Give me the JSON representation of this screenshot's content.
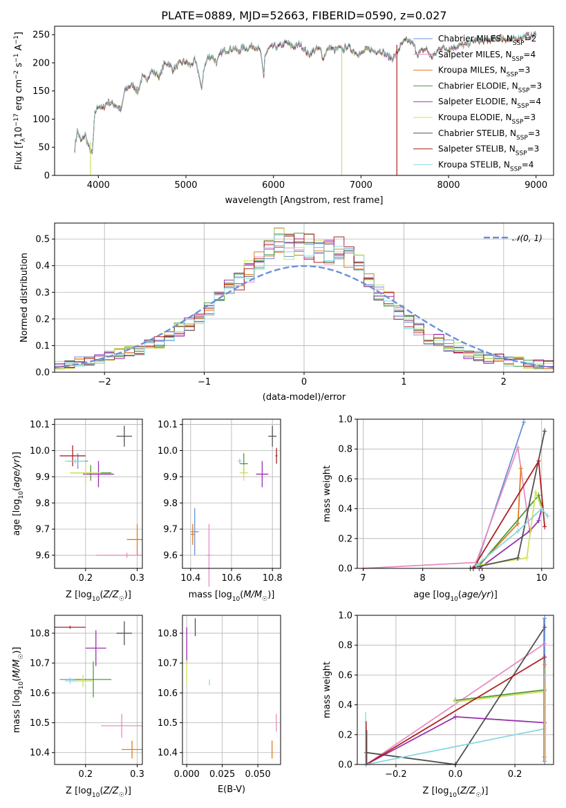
{
  "colors": {
    "Chabrier MILES": "#6a8fd8",
    "Salpeter MILES": "#e88cc0",
    "Kroupa MILES": "#e07a20",
    "Chabrier ELODIE": "#4d9a3a",
    "Salpeter ELODIE": "#9a2eb0",
    "Kroupa ELODIE": "#cfe05a",
    "Chabrier STELIB": "#505050",
    "Salpeter STELIB": "#b01f1f",
    "Kroupa STELIB": "#86d8e0",
    "gaussian": "#6a8fd8"
  },
  "chart_data": [
    {
      "id": "spectrum",
      "type": "line",
      "title": "PLATE=0889, MJD=52663, FIBERID=0590, z=0.027",
      "xlabel": "wavelength [Angstrom, rest frame]",
      "ylabel": "Flux [f_λ 10^-17 erg cm^-2 s^-1 A^-1]",
      "xlim": [
        3500,
        9200
      ],
      "ylim": [
        0,
        265
      ],
      "xticks": [
        "4000",
        "5000",
        "6000",
        "7000",
        "8000",
        "9000"
      ],
      "yticks": [
        "0",
        "50",
        "100",
        "150",
        "200",
        "250"
      ],
      "legend_position": "right",
      "legend": [
        "Chabrier MILES, N_SSP=2",
        "Salpeter MILES, N_SSP=4",
        "Kroupa MILES, N_SSP=3",
        "Chabrier ELODIE, N_SSP=3",
        "Salpeter ELODIE, N_SSP=4",
        "Kroupa ELODIE, N_SSP=3",
        "Chabrier STELIB, N_SSP=3",
        "Salpeter STELIB, N_SSP=3",
        "Kroupa STELIB, N_SSP=4"
      ],
      "x": [
        3730,
        3760,
        3800,
        3850,
        3900,
        3930,
        3960,
        4000,
        4050,
        4100,
        4150,
        4200,
        4260,
        4300,
        4350,
        4400,
        4450,
        4500,
        4550,
        4600,
        4650,
        4700,
        4750,
        4800,
        4850,
        4900,
        4950,
        5000,
        5050,
        5100,
        5150,
        5180,
        5200,
        5250,
        5300,
        5350,
        5400,
        5450,
        5500,
        5550,
        5600,
        5650,
        5700,
        5750,
        5800,
        5850,
        5890,
        5900,
        5950,
        6000,
        6050,
        6100,
        6150,
        6200,
        6250,
        6300,
        6350,
        6400,
        6450,
        6500,
        6550,
        6565,
        6600,
        6650,
        6700,
        6750,
        6800,
        6850,
        6900,
        6950,
        7000,
        7050,
        7100,
        7150,
        7200,
        7250,
        7300,
        7350,
        7400,
        7450,
        7500,
        7550,
        7600,
        7650,
        7700,
        7750,
        7800,
        7850,
        7900,
        7950,
        8000,
        8100,
        8200,
        8300,
        8400,
        8500,
        8600,
        8700,
        8800,
        8900,
        9000
      ],
      "y": [
        48,
        80,
        60,
        72,
        45,
        38,
        110,
        125,
        118,
        130,
        128,
        125,
        115,
        150,
        158,
        160,
        148,
        175,
        170,
        185,
        182,
        175,
        198,
        200,
        188,
        195,
        200,
        202,
        195,
        205,
        180,
        150,
        185,
        210,
        212,
        200,
        218,
        222,
        224,
        226,
        220,
        228,
        225,
        230,
        228,
        222,
        175,
        212,
        225,
        230,
        228,
        232,
        236,
        230,
        228,
        234,
        225,
        215,
        220,
        225,
        222,
        205,
        220,
        228,
        222,
        226,
        224,
        230,
        222,
        218,
        215,
        222,
        225,
        220,
        222,
        220,
        212,
        208,
        215,
        230,
        238,
        240,
        232,
        215,
        222,
        225,
        210,
        215,
        228,
        226,
        225,
        230,
        232,
        240,
        238,
        242,
        245,
        240,
        244,
        248,
        250
      ]
    },
    {
      "id": "residuals",
      "type": "histogram",
      "xlabel": "(data-model)/error",
      "ylabel": "Normed distribution",
      "xlim": [
        -2.5,
        2.5
      ],
      "ylim": [
        0,
        0.56
      ],
      "xticks": [
        "−2",
        "−1",
        "0",
        "1",
        "2"
      ],
      "yticks": [
        "0.0",
        "0.1",
        "0.2",
        "0.3",
        "0.4",
        "0.5"
      ],
      "gaussian_label": "𝒩(0, 1)",
      "bin_edges": [
        -2.5,
        -2.4,
        -2.3,
        -2.2,
        -2.1,
        -2.0,
        -1.9,
        -1.8,
        -1.7,
        -1.6,
        -1.5,
        -1.4,
        -1.3,
        -1.2,
        -1.1,
        -1.0,
        -0.9,
        -0.8,
        -0.7,
        -0.6,
        -0.5,
        -0.4,
        -0.3,
        -0.2,
        -0.1,
        0.0,
        0.1,
        0.2,
        0.3,
        0.4,
        0.5,
        0.6,
        0.7,
        0.8,
        0.9,
        1.0,
        1.1,
        1.2,
        1.3,
        1.4,
        1.5,
        1.6,
        1.7,
        1.8,
        1.9,
        2.0,
        2.1,
        2.2,
        2.3,
        2.4,
        2.5
      ],
      "base_values": [
        0.03,
        0.03,
        0.04,
        0.04,
        0.05,
        0.06,
        0.07,
        0.08,
        0.08,
        0.1,
        0.11,
        0.13,
        0.16,
        0.18,
        0.21,
        0.23,
        0.27,
        0.31,
        0.34,
        0.38,
        0.43,
        0.46,
        0.49,
        0.47,
        0.48,
        0.47,
        0.46,
        0.45,
        0.47,
        0.44,
        0.4,
        0.35,
        0.3,
        0.27,
        0.23,
        0.19,
        0.16,
        0.13,
        0.12,
        0.1,
        0.09,
        0.07,
        0.06,
        0.05,
        0.05,
        0.04,
        0.04,
        0.03,
        0.03,
        0.03
      ]
    },
    {
      "id": "age_vs_Z",
      "type": "scatter",
      "xlabel": "Z [log10(Z/Z☉)]",
      "ylabel": "age  [log10(age/yr)]",
      "xlim": [
        0.14,
        0.31
      ],
      "ylim": [
        9.55,
        10.12
      ],
      "xticks": [
        "0.2",
        "0.3"
      ],
      "yticks": [
        "9.6",
        "9.7",
        "9.8",
        "9.9",
        "10.0",
        "10.1"
      ],
      "points": [
        {
          "model": "Chabrier MILES",
          "x": 0.185,
          "y": 9.96,
          "xerr": 0.02,
          "yerr": 0.03
        },
        {
          "model": "Salpeter MILES",
          "x": 0.28,
          "y": 9.6,
          "xerr": 0.06,
          "yerr": 0.01
        },
        {
          "model": "Kroupa MILES",
          "x": 0.3,
          "y": 9.66,
          "xerr": 0.02,
          "yerr": 0.06
        },
        {
          "model": "Chabrier ELODIE",
          "x": 0.21,
          "y": 9.915,
          "xerr": 0.04,
          "yerr": 0.03
        },
        {
          "model": "Salpeter ELODIE",
          "x": 0.225,
          "y": 9.91,
          "xerr": 0.03,
          "yerr": 0.05
        },
        {
          "model": "Kroupa ELODIE",
          "x": 0.2,
          "y": 9.915,
          "xerr": 0.03,
          "yerr": 0.04
        },
        {
          "model": "Chabrier STELIB",
          "x": 0.275,
          "y": 10.055,
          "xerr": 0.015,
          "yerr": 0.04
        },
        {
          "model": "Salpeter STELIB",
          "x": 0.175,
          "y": 9.98,
          "xerr": 0.025,
          "yerr": 0.04
        },
        {
          "model": "Kroupa STELIB",
          "x": 0.18,
          "y": 9.96,
          "xerr": 0.02,
          "yerr": 0.01
        }
      ]
    },
    {
      "id": "age_vs_mass",
      "type": "scatter",
      "xlabel": "mass [log10(M/M☉)]",
      "ylabel": "",
      "xlim": [
        10.36,
        10.84
      ],
      "ylim": [
        9.55,
        10.12
      ],
      "xticks": [
        "10.4",
        "10.6",
        "10.8"
      ],
      "yticks": [
        "9.6",
        "9.7",
        "9.8",
        "9.9",
        "10.0",
        "10.1"
      ],
      "points": [
        {
          "model": "Chabrier MILES",
          "x": 10.42,
          "y": 9.69,
          "xerr": 0.02,
          "yerr": 0.09
        },
        {
          "model": "Salpeter MILES",
          "x": 10.49,
          "y": 9.6,
          "xerr": 0.01,
          "yerr": 0.12
        },
        {
          "model": "Kroupa MILES",
          "x": 10.41,
          "y": 9.68,
          "xerr": 0.01,
          "yerr": 0.04
        },
        {
          "model": "Chabrier ELODIE",
          "x": 10.66,
          "y": 9.95,
          "xerr": 0.02,
          "yerr": 0.04
        },
        {
          "model": "Salpeter ELODIE",
          "x": 10.75,
          "y": 9.91,
          "xerr": 0.03,
          "yerr": 0.05
        },
        {
          "model": "Kroupa ELODIE",
          "x": 10.66,
          "y": 9.915,
          "xerr": 0.02,
          "yerr": 0.03
        },
        {
          "model": "Chabrier STELIB",
          "x": 10.8,
          "y": 10.055,
          "xerr": 0.02,
          "yerr": 0.04
        },
        {
          "model": "Salpeter STELIB",
          "x": 10.82,
          "y": 9.98,
          "xerr": 0.005,
          "yerr": 0.03
        },
        {
          "model": "Kroupa STELIB",
          "x": 10.64,
          "y": 9.96,
          "xerr": 0.01,
          "yerr": 0.01
        }
      ]
    },
    {
      "id": "weight_vs_age",
      "type": "line",
      "xlabel": "age  [log10(age/yr)]",
      "ylabel": "mass weight",
      "xlim": [
        6.9,
        10.2
      ],
      "ylim": [
        0,
        1.0
      ],
      "xticks": [
        "7",
        "8",
        "9",
        "10"
      ],
      "yticks": [
        "0.0",
        "0.2",
        "0.4",
        "0.6",
        "0.8",
        "1.0"
      ],
      "series": [
        {
          "model": "Chabrier MILES",
          "x": [
            8.9,
            9.7
          ],
          "y": [
            0.02,
            0.98
          ]
        },
        {
          "model": "Salpeter MILES",
          "x": [
            7.0,
            8.9,
            9.6,
            9.8
          ],
          "y": [
            0.0,
            0.04,
            0.81,
            0.25
          ]
        },
        {
          "model": "Kroupa MILES",
          "x": [
            8.95,
            9.6,
            9.65
          ],
          "y": [
            0.02,
            0.3,
            0.67
          ]
        },
        {
          "model": "Chabrier ELODIE",
          "x": [
            8.95,
            9.95,
            10.0
          ],
          "y": [
            0.02,
            0.49,
            0.42
          ]
        },
        {
          "model": "Salpeter ELODIE",
          "x": [
            8.95,
            9.8,
            9.95,
            10.0
          ],
          "y": [
            0.0,
            0.25,
            0.32,
            0.4
          ]
        },
        {
          "model": "Kroupa ELODIE",
          "x": [
            8.95,
            9.75,
            9.9,
            10.0
          ],
          "y": [
            0.02,
            0.07,
            0.51,
            0.4
          ]
        },
        {
          "model": "Chabrier STELIB",
          "x": [
            8.8,
            9.6,
            10.05
          ],
          "y": [
            0.0,
            0.07,
            0.92
          ]
        },
        {
          "model": "Salpeter STELIB",
          "x": [
            8.85,
            9.95,
            10.05
          ],
          "y": [
            0.0,
            0.72,
            0.28
          ]
        },
        {
          "model": "Kroupa STELIB",
          "x": [
            8.9,
            9.6,
            10.0,
            10.1
          ],
          "y": [
            0.02,
            0.25,
            0.4,
            0.35
          ]
        }
      ]
    },
    {
      "id": "mass_vs_Z",
      "type": "scatter",
      "xlabel": "Z [log10(Z/Z☉)]",
      "ylabel": "mass [log10(M/M☉)]",
      "xlim": [
        0.14,
        0.31
      ],
      "ylim": [
        10.36,
        10.86
      ],
      "xticks": [
        "0.2",
        "0.3"
      ],
      "yticks": [
        "10.4",
        "10.5",
        "10.6",
        "10.7",
        "10.8"
      ],
      "points": [
        {
          "model": "Chabrier MILES",
          "x": 0.17,
          "y": 10.645,
          "xerr": 0.02,
          "yerr": 0.005
        },
        {
          "model": "Salpeter MILES",
          "x": 0.27,
          "y": 10.49,
          "xerr": 0.04,
          "yerr": 0.04
        },
        {
          "model": "Kroupa MILES",
          "x": 0.29,
          "y": 10.41,
          "xerr": 0.02,
          "yerr": 0.03
        },
        {
          "model": "Chabrier ELODIE",
          "x": 0.215,
          "y": 10.645,
          "xerr": 0.035,
          "yerr": 0.06
        },
        {
          "model": "Salpeter ELODIE",
          "x": 0.22,
          "y": 10.75,
          "xerr": 0.02,
          "yerr": 0.06
        },
        {
          "model": "Kroupa ELODIE",
          "x": 0.195,
          "y": 10.64,
          "xerr": 0.02,
          "yerr": 0.02
        },
        {
          "model": "Chabrier STELIB",
          "x": 0.275,
          "y": 10.8,
          "xerr": 0.015,
          "yerr": 0.04
        },
        {
          "model": "Salpeter STELIB",
          "x": 0.17,
          "y": 10.82,
          "xerr": 0.03,
          "yerr": 0.005
        },
        {
          "model": "Kroupa STELIB",
          "x": 0.17,
          "y": 10.64,
          "xerr": 0.01,
          "yerr": 0.01
        }
      ]
    },
    {
      "id": "mass_vs_EBV",
      "type": "scatter",
      "xlabel": "E(B-V)",
      "ylabel": "",
      "xlim": [
        -0.003,
        0.066
      ],
      "ylim": [
        10.36,
        10.86
      ],
      "xticks": [
        "0.000",
        "0.025",
        "0.050"
      ],
      "yticks": [
        "10.4",
        "10.5",
        "10.6",
        "10.7",
        "10.8"
      ],
      "points": [
        {
          "model": "Salpeter ELODIE",
          "x": 0.0,
          "y": 10.76,
          "xerr": 0.0,
          "yerr": 0.06
        },
        {
          "model": "Kroupa ELODIE",
          "x": 0.0,
          "y": 10.67,
          "xerr": 0.0,
          "yerr": 0.04
        },
        {
          "model": "Chabrier STELIB",
          "x": 0.006,
          "y": 10.82,
          "xerr": 0.0,
          "yerr": 0.03
        },
        {
          "model": "Kroupa STELIB",
          "x": 0.016,
          "y": 10.635,
          "xerr": 0.0,
          "yerr": 0.01
        },
        {
          "model": "Salpeter MILES",
          "x": 0.063,
          "y": 10.5,
          "xerr": 0.0,
          "yerr": 0.03
        },
        {
          "model": "Kroupa MILES",
          "x": 0.06,
          "y": 10.41,
          "xerr": 0.0,
          "yerr": 0.03
        }
      ]
    },
    {
      "id": "weight_vs_Z",
      "type": "line",
      "xlabel": "Z [log10(Z/Z☉)]",
      "ylabel": "mass weight",
      "xlim": [
        -0.33,
        0.33
      ],
      "ylim": [
        0,
        1.0
      ],
      "xticks": [
        "−0.2",
        "0.0",
        "0.2"
      ],
      "yticks": [
        "0.0",
        "0.2",
        "0.4",
        "0.6",
        "0.8",
        "1.0"
      ],
      "series": [
        {
          "model": "Chabrier MILES",
          "x": [
            0.3,
            0.3
          ],
          "y": [
            0.02,
            0.98
          ]
        },
        {
          "model": "Salpeter MILES",
          "x": [
            -0.3,
            0.3
          ],
          "y": [
            0.0,
            0.81
          ]
        },
        {
          "model": "Kroupa MILES",
          "x": [
            0.3,
            0.3
          ],
          "y": [
            0.05,
            0.67
          ]
        },
        {
          "model": "Chabrier ELODIE",
          "x": [
            0.0,
            0.3
          ],
          "y": [
            0.43,
            0.5
          ]
        },
        {
          "model": "Salpeter ELODIE",
          "x": [
            -0.3,
            0.0,
            0.3
          ],
          "y": [
            0.0,
            0.32,
            0.28
          ]
        },
        {
          "model": "Kroupa ELODIE",
          "x": [
            0.0,
            0.3
          ],
          "y": [
            0.42,
            0.49
          ]
        },
        {
          "model": "Chabrier STELIB",
          "x": [
            -0.3,
            0.0,
            0.3
          ],
          "y": [
            0.08,
            0.0,
            0.92
          ]
        },
        {
          "model": "Salpeter STELIB",
          "x": [
            -0.3,
            0.3
          ],
          "y": [
            0.0,
            0.72
          ]
        },
        {
          "model": "Kroupa STELIB",
          "x": [
            -0.3,
            0.3
          ],
          "y": [
            0.0,
            0.24
          ]
        }
      ]
    }
  ]
}
